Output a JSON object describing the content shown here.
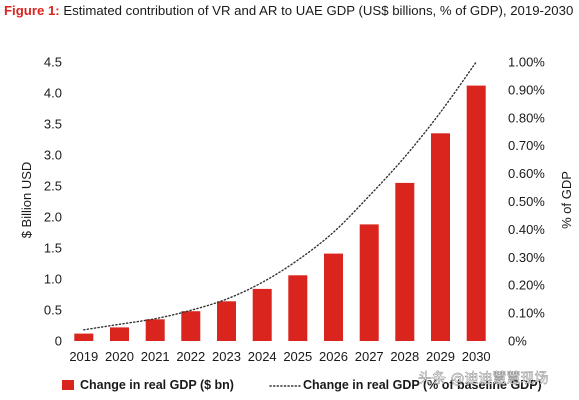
{
  "figure": {
    "prefix": "Figure 1:",
    "title": "Estimated contribution of VR and AR to UAE GDP (US$ billions, % of GDP), 2019-2030"
  },
  "watermark": "头条 @迪迪慧慧现场",
  "colors": {
    "bar": "#d9251d",
    "line": "#333333",
    "accent": "#d9251d"
  },
  "chart_data": {
    "type": "bar",
    "categories": [
      "2019",
      "2020",
      "2021",
      "2022",
      "2023",
      "2024",
      "2025",
      "2026",
      "2027",
      "2028",
      "2029",
      "2030"
    ],
    "series": [
      {
        "name": "Change in real GDP ($ bn)",
        "type": "bar",
        "axis": "left",
        "values": [
          0.12,
          0.22,
          0.35,
          0.48,
          0.64,
          0.84,
          1.06,
          1.41,
          1.88,
          2.55,
          3.35,
          4.12
        ]
      },
      {
        "name": "Change in real GDP (% of baseline GDP)",
        "type": "line",
        "style": "dotted",
        "axis": "right",
        "values": [
          0.04,
          0.06,
          0.08,
          0.11,
          0.15,
          0.21,
          0.29,
          0.39,
          0.52,
          0.66,
          0.82,
          1.0
        ]
      }
    ],
    "ylabel_left": "$ Billion USD",
    "ylabel_right": "% of GDP",
    "ylim_left": [
      0,
      4.5
    ],
    "ylim_right": [
      0,
      1.0
    ],
    "yticks_left": [
      "0",
      "0.5",
      "1.0",
      "1.5",
      "2.0",
      "2.5",
      "3.0",
      "3.5",
      "4.0",
      "4.5"
    ],
    "yticks_right": [
      "0%",
      "0.10%",
      "0.20%",
      "0.30%",
      "0.40%",
      "0.50%",
      "0.60%",
      "0.70%",
      "0.80%",
      "0.90%",
      "1.00%"
    ],
    "grid": false,
    "legend_position": "bottom"
  }
}
